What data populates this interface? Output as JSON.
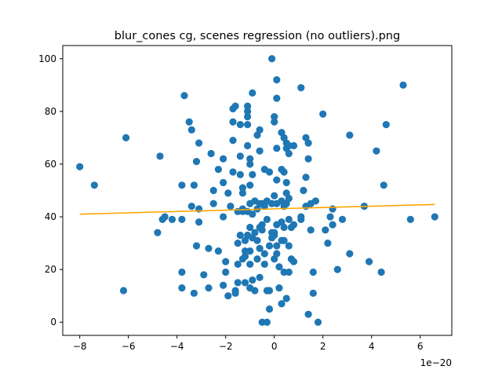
{
  "chart_data": {
    "type": "scatter",
    "title": "blur_cones cg, scenes regression (no outliers).png",
    "x_offset_label": "1e−20",
    "xlim": [
      -8.7,
      7.3
    ],
    "ylim": [
      -5,
      105
    ],
    "xticks": [
      -8,
      -6,
      -4,
      -2,
      0,
      2,
      4,
      6
    ],
    "xtick_labels": [
      "−8",
      "−6",
      "−4",
      "−2",
      "0",
      "2",
      "4",
      "6"
    ],
    "yticks": [
      0,
      20,
      40,
      60,
      80,
      100
    ],
    "ytick_labels": [
      "0",
      "20",
      "40",
      "60",
      "80",
      "100"
    ],
    "grid": false,
    "point_color": "#1f77b4",
    "line_color": "#ffa500",
    "regression_line": {
      "x": [
        -8.0,
        6.6
      ],
      "y": [
        41.0,
        44.7
      ]
    },
    "points": [
      [
        -8.0,
        59
      ],
      [
        -7.4,
        52
      ],
      [
        -6.2,
        12
      ],
      [
        -6.1,
        70
      ],
      [
        -4.8,
        34
      ],
      [
        -4.7,
        63
      ],
      [
        -4.6,
        39
      ],
      [
        -4.5,
        40
      ],
      [
        -4.2,
        39
      ],
      [
        -3.8,
        13
      ],
      [
        -3.8,
        19
      ],
      [
        -3.8,
        39
      ],
      [
        -3.8,
        52
      ],
      [
        -3.7,
        86
      ],
      [
        -3.5,
        76
      ],
      [
        -3.4,
        73
      ],
      [
        -3.4,
        44
      ],
      [
        -3.3,
        52
      ],
      [
        -3.3,
        11
      ],
      [
        -3.2,
        29
      ],
      [
        -3.2,
        61
      ],
      [
        -3.1,
        68
      ],
      [
        -3.1,
        43
      ],
      [
        -3.1,
        38
      ],
      [
        -2.9,
        18
      ],
      [
        -2.7,
        13
      ],
      [
        -2.7,
        28
      ],
      [
        -2.6,
        64
      ],
      [
        -2.5,
        50
      ],
      [
        -2.5,
        45
      ],
      [
        -2.3,
        27
      ],
      [
        -2.3,
        58
      ],
      [
        -2.1,
        62
      ],
      [
        -2.1,
        53
      ],
      [
        -2.1,
        14
      ],
      [
        -2.1,
        40
      ],
      [
        -2.0,
        19
      ],
      [
        -2.0,
        23
      ],
      [
        -1.9,
        49
      ],
      [
        -1.9,
        10
      ],
      [
        -1.8,
        44
      ],
      [
        -1.7,
        57
      ],
      [
        -1.7,
        69
      ],
      [
        -1.7,
        76
      ],
      [
        -1.7,
        81
      ],
      [
        -1.6,
        82
      ],
      [
        -1.6,
        12
      ],
      [
        -1.6,
        11
      ],
      [
        -1.5,
        42
      ],
      [
        -1.5,
        15
      ],
      [
        -1.5,
        22
      ],
      [
        -1.5,
        30
      ],
      [
        -1.4,
        56
      ],
      [
        -1.4,
        63
      ],
      [
        -1.4,
        75
      ],
      [
        -1.4,
        33
      ],
      [
        -1.3,
        43
      ],
      [
        -1.3,
        51
      ],
      [
        -1.3,
        49
      ],
      [
        -1.3,
        42
      ],
      [
        -1.3,
        24
      ],
      [
        -1.2,
        25
      ],
      [
        -1.2,
        27
      ],
      [
        -1.2,
        15
      ],
      [
        -1.2,
        31
      ],
      [
        -1.1,
        75
      ],
      [
        -1.1,
        78
      ],
      [
        -1.1,
        80
      ],
      [
        -1.1,
        82
      ],
      [
        -1.1,
        67
      ],
      [
        -1.1,
        42
      ],
      [
        -1.1,
        33
      ],
      [
        -1.0,
        60
      ],
      [
        -1.0,
        62
      ],
      [
        -1.0,
        52
      ],
      [
        -1.0,
        45
      ],
      [
        -1.0,
        36
      ],
      [
        -1.0,
        27
      ],
      [
        -1.0,
        22
      ],
      [
        -1.0,
        13
      ],
      [
        -0.9,
        87
      ],
      [
        -0.9,
        56
      ],
      [
        -0.9,
        41
      ],
      [
        -0.9,
        32
      ],
      [
        -0.9,
        16
      ],
      [
        -0.8,
        12
      ],
      [
        -0.8,
        34
      ],
      [
        -0.8,
        46
      ],
      [
        -0.7,
        43
      ],
      [
        -0.7,
        31
      ],
      [
        -0.7,
        24
      ],
      [
        -0.7,
        71
      ],
      [
        -0.6,
        73
      ],
      [
        -0.6,
        65
      ],
      [
        -0.6,
        45
      ],
      [
        -0.6,
        36
      ],
      [
        -0.6,
        28
      ],
      [
        -0.6,
        17
      ],
      [
        -0.5,
        0
      ],
      [
        -0.5,
        35
      ],
      [
        -0.5,
        37
      ],
      [
        -0.5,
        45
      ],
      [
        -0.4,
        58
      ],
      [
        -0.4,
        44
      ],
      [
        -0.4,
        26
      ],
      [
        -0.4,
        22
      ],
      [
        -0.3,
        12
      ],
      [
        -0.3,
        0
      ],
      [
        -0.3,
        46
      ],
      [
        -0.3,
        39
      ],
      [
        -0.2,
        29
      ],
      [
        -0.2,
        12
      ],
      [
        -0.2,
        5
      ],
      [
        -0.2,
        57
      ],
      [
        -0.1,
        100
      ],
      [
        -0.1,
        32
      ],
      [
        -0.1,
        34
      ],
      [
        -0.1,
        45
      ],
      [
        0.0,
        76
      ],
      [
        0.0,
        78
      ],
      [
        0.0,
        48
      ],
      [
        0.0,
        33
      ],
      [
        0.0,
        24
      ],
      [
        0.0,
        34
      ],
      [
        0.1,
        92
      ],
      [
        0.1,
        85
      ],
      [
        0.1,
        66
      ],
      [
        0.1,
        54
      ],
      [
        0.1,
        45
      ],
      [
        0.1,
        37
      ],
      [
        0.1,
        29
      ],
      [
        0.1,
        26
      ],
      [
        0.2,
        21
      ],
      [
        0.2,
        13
      ],
      [
        0.3,
        72
      ],
      [
        0.3,
        58
      ],
      [
        0.3,
        46
      ],
      [
        0.3,
        38
      ],
      [
        0.3,
        31
      ],
      [
        0.3,
        7
      ],
      [
        0.4,
        70
      ],
      [
        0.4,
        57
      ],
      [
        0.4,
        44
      ],
      [
        0.4,
        36
      ],
      [
        0.4,
        31
      ],
      [
        0.4,
        19
      ],
      [
        0.5,
        68
      ],
      [
        0.5,
        66
      ],
      [
        0.5,
        53
      ],
      [
        0.5,
        49
      ],
      [
        0.5,
        45
      ],
      [
        0.5,
        9
      ],
      [
        0.6,
        67
      ],
      [
        0.6,
        64
      ],
      [
        0.6,
        47
      ],
      [
        0.6,
        39
      ],
      [
        0.6,
        29
      ],
      [
        0.6,
        19
      ],
      [
        0.7,
        36
      ],
      [
        0.7,
        24
      ],
      [
        0.8,
        67
      ],
      [
        0.8,
        37
      ],
      [
        0.8,
        23
      ],
      [
        1.1,
        89
      ],
      [
        1.1,
        40
      ],
      [
        1.1,
        39
      ],
      [
        1.2,
        50
      ],
      [
        1.3,
        44
      ],
      [
        1.3,
        55
      ],
      [
        1.3,
        70
      ],
      [
        1.4,
        68
      ],
      [
        1.4,
        62
      ],
      [
        1.4,
        3
      ],
      [
        1.5,
        45
      ],
      [
        1.5,
        35
      ],
      [
        1.6,
        19
      ],
      [
        1.6,
        11
      ],
      [
        1.7,
        46
      ],
      [
        1.8,
        0
      ],
      [
        2.0,
        79
      ],
      [
        2.1,
        35
      ],
      [
        2.2,
        30
      ],
      [
        2.3,
        40
      ],
      [
        2.4,
        43
      ],
      [
        2.4,
        37
      ],
      [
        2.6,
        20
      ],
      [
        2.8,
        39
      ],
      [
        3.1,
        71
      ],
      [
        3.1,
        26
      ],
      [
        3.7,
        44
      ],
      [
        3.9,
        23
      ],
      [
        4.2,
        65
      ],
      [
        4.4,
        19
      ],
      [
        4.5,
        52
      ],
      [
        4.6,
        75
      ],
      [
        5.3,
        90
      ],
      [
        5.6,
        39
      ],
      [
        6.6,
        40
      ]
    ]
  }
}
